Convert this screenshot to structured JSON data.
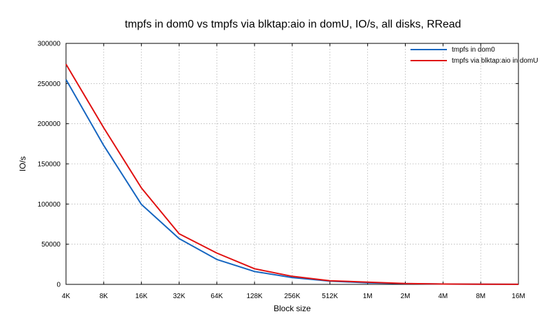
{
  "chart_data": {
    "type": "line",
    "title": "tmpfs in dom0 vs tmpfs via blktap:aio in domU, IO/s, all disks, RRead",
    "xlabel": "Block size",
    "ylabel": "IO/s",
    "categories": [
      "4K",
      "8K",
      "16K",
      "32K",
      "64K",
      "128K",
      "256K",
      "512K",
      "1M",
      "2M",
      "4M",
      "8M",
      "16M"
    ],
    "ylim": [
      0,
      300000
    ],
    "yticks": [
      "0",
      "50000",
      "100000",
      "150000",
      "200000",
      "250000",
      "300000"
    ],
    "grid": true,
    "legend_position": "top-right",
    "series": [
      {
        "name": "tmpfs in dom0",
        "color": "#1565c0",
        "values": [
          255000,
          173000,
          99500,
          57000,
          31000,
          16000,
          8500,
          4000,
          2000,
          900,
          400,
          200,
          100
        ]
      },
      {
        "name": "tmpfs via blktap:aio in domU",
        "color": "#e01010",
        "values": [
          274000,
          195000,
          120000,
          63000,
          39000,
          19500,
          10000,
          4500,
          2800,
          1000,
          450,
          220,
          110
        ]
      }
    ]
  }
}
